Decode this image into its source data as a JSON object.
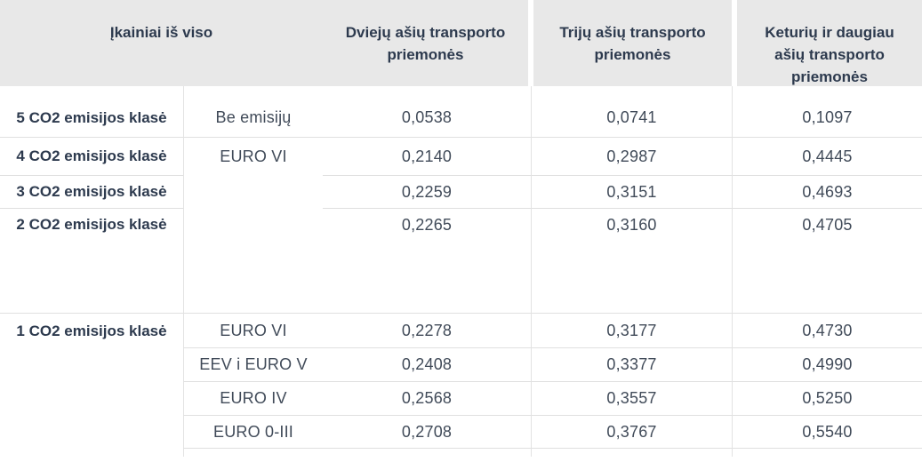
{
  "table": {
    "title_cell": "Įkainiai iš viso",
    "header": {
      "columns": [
        "Dviejų ašių transporto priemonės",
        "Trijų ašių transporto priemonės",
        "Keturių ir daugiau ašių transporto priemonės"
      ]
    },
    "rows": [
      {
        "klase": "5 CO2 emisijos klasė",
        "emisija": "Be emisijų",
        "dvieju": "0,0538",
        "triju": "0,0741",
        "keturiu": "0,1097"
      },
      {
        "klase": "4 CO2 emisijos klasė",
        "emisija": "EURO VI",
        "dvieju": "0,2140",
        "triju": "0,2987",
        "keturiu": "0,4445"
      },
      {
        "klase": "3 CO2 emisijos klasė",
        "emisija": "",
        "dvieju": "0,2259",
        "triju": "0,3151",
        "keturiu": "0,4693"
      },
      {
        "klase": "2 CO2 emisijos klasė",
        "emisija": "",
        "dvieju": "0,2265",
        "triju": "0,3160",
        "keturiu": "0,4705"
      },
      {
        "klase": "1 CO2 emisijos klasė",
        "emisija": "EURO VI",
        "dvieju": "0,2278",
        "triju": "0,3177",
        "keturiu": "0,4730"
      },
      {
        "klase": "",
        "emisija": "EEV i EURO V",
        "dvieju": "0,2408",
        "triju": "0,3377",
        "keturiu": "0,4990"
      },
      {
        "klase": "",
        "emisija": "EURO IV",
        "dvieju": "0,2568",
        "triju": "0,3557",
        "keturiu": "0,5250"
      },
      {
        "klase": "",
        "emisija": "EURO 0-III",
        "dvieju": "0,2708",
        "triju": "0,3767",
        "keturiu": "0,5540"
      }
    ],
    "colors": {
      "header_bg": "#e8e8e8",
      "header_text": "#2d3a4e",
      "body_text": "#414b59",
      "border": "#e0e0e0"
    }
  }
}
